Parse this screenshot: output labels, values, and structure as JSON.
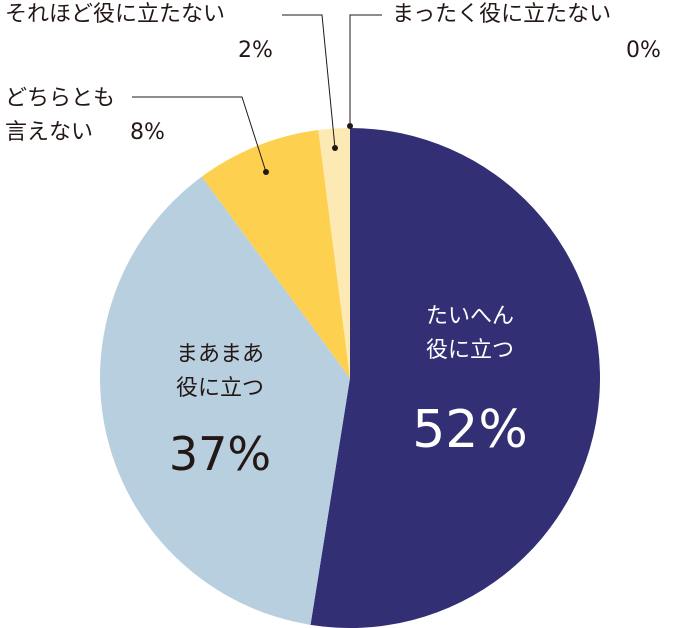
{
  "chart_data": {
    "type": "pie",
    "categories": [
      "たいへん\n役に立つ",
      "まあまあ\n役に立つ",
      "どちらとも\n言えない",
      "それほど役に立たない",
      "まったく役に立たない"
    ],
    "values": [
      52,
      37,
      8,
      2,
      0
    ],
    "value_labels": [
      "52%",
      "37%",
      "8%",
      "2%",
      "0%"
    ],
    "colors": [
      "#332f75",
      "#b8cfdf",
      "#fdd14f",
      "#fde9b4",
      "#fde9b4"
    ]
  }
}
